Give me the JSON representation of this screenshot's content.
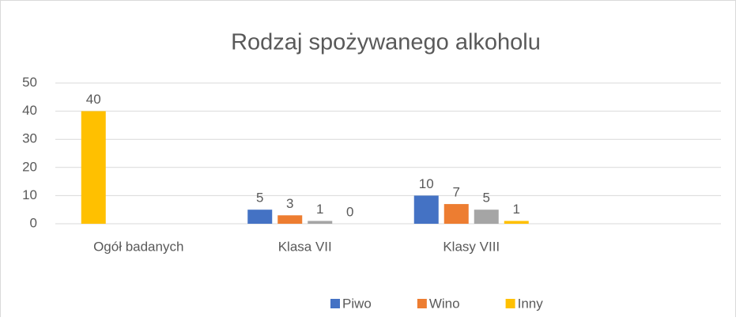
{
  "chart_data": {
    "type": "bar",
    "title": "Rodzaj spożywanego alkoholu",
    "categories": [
      "Ogół badanych",
      "Klasa VII",
      "Klasy VIII",
      null
    ],
    "series": [
      {
        "name": "Piwo",
        "color": "#4472c4",
        "point_colors": [
          "#ffc000",
          null,
          null,
          null
        ],
        "values": [
          40,
          5,
          10,
          null
        ]
      },
      {
        "name": "Wino",
        "color": "#ed7d31",
        "values": [
          null,
          3,
          7,
          null
        ]
      },
      {
        "color": "#a5a5a5",
        "values": [
          null,
          1,
          5,
          null
        ]
      },
      {
        "name": "Inny",
        "color": "#ffc000",
        "values": [
          null,
          0,
          1,
          null
        ]
      }
    ],
    "ylim": [
      0,
      50
    ],
    "yticks": [
      0,
      10,
      20,
      30,
      40,
      50
    ],
    "grid": true,
    "legend": "bottom"
  }
}
